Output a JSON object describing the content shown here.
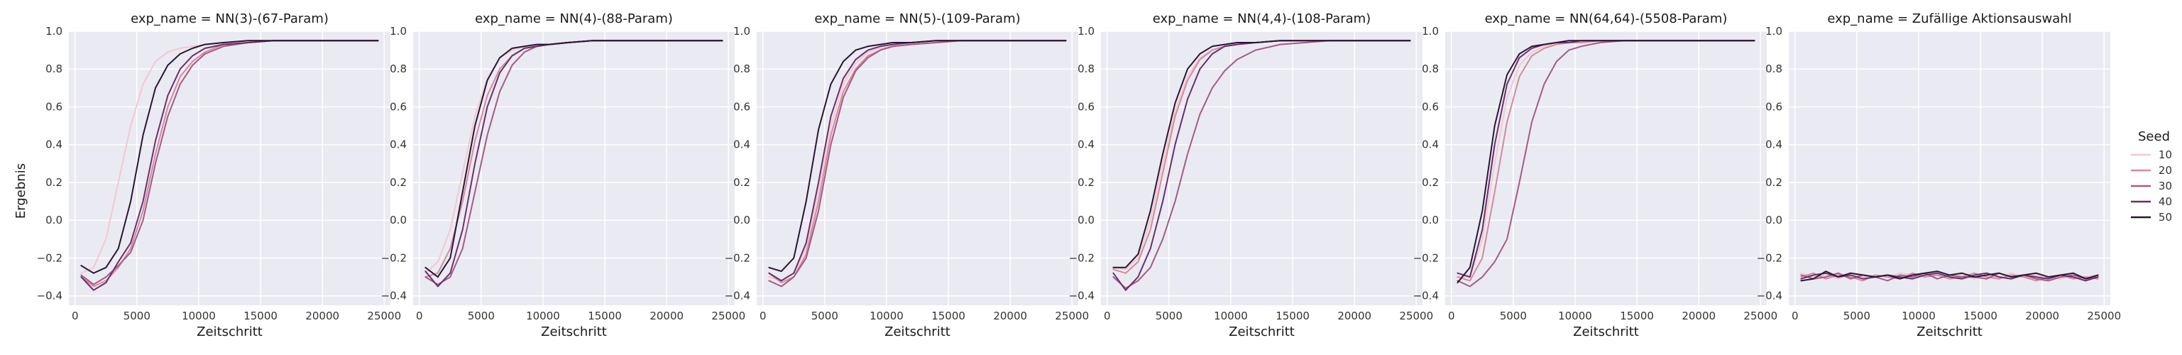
{
  "figure": {
    "ylabel": "Ergebnis",
    "legend_title": "Seed",
    "seeds": [
      "10",
      "20",
      "30",
      "40",
      "50"
    ],
    "seed_colors": [
      "#f2c9cf",
      "#d48a9c",
      "#a65a86",
      "#6b2f6b",
      "#2a1534"
    ],
    "plot_background": "#eaeaf2",
    "grid_color": "#ffffff"
  },
  "chart_data": [
    {
      "type": "line",
      "title": "exp_name = NN(3)-(67-Param)",
      "xlabel": "Zeitschritt",
      "ylabel": "Ergebnis",
      "xlim": [
        -500,
        25500
      ],
      "ylim": [
        -0.45,
        1.0
      ],
      "xticks": [
        0,
        5000,
        10000,
        15000,
        20000,
        25000
      ],
      "yticks": [
        -0.4,
        -0.2,
        0.0,
        0.2,
        0.4,
        0.6,
        0.8,
        1.0
      ],
      "grid": true,
      "legend": "right",
      "x": [
        500,
        1500,
        2500,
        3500,
        4500,
        5500,
        6500,
        7500,
        8500,
        9500,
        10500,
        12000,
        14000,
        16000,
        18000,
        20000,
        22000,
        24500
      ],
      "series": [
        {
          "name": "10",
          "values": [
            -0.28,
            -0.25,
            -0.1,
            0.2,
            0.5,
            0.72,
            0.84,
            0.89,
            0.91,
            0.92,
            0.93,
            0.94,
            0.95,
            0.95,
            0.95,
            0.95,
            0.95,
            0.95
          ]
        },
        {
          "name": "20",
          "values": [
            -0.3,
            -0.35,
            -0.32,
            -0.25,
            -0.15,
            0.05,
            0.35,
            0.6,
            0.76,
            0.84,
            0.89,
            0.93,
            0.94,
            0.95,
            0.95,
            0.95,
            0.95,
            0.95
          ]
        },
        {
          "name": "30",
          "values": [
            -0.29,
            -0.34,
            -0.3,
            -0.24,
            -0.17,
            0.0,
            0.3,
            0.55,
            0.72,
            0.82,
            0.88,
            0.92,
            0.94,
            0.95,
            0.95,
            0.95,
            0.95,
            0.95
          ]
        },
        {
          "name": "40",
          "values": [
            -0.3,
            -0.37,
            -0.33,
            -0.22,
            -0.12,
            0.1,
            0.42,
            0.66,
            0.8,
            0.87,
            0.91,
            0.93,
            0.94,
            0.95,
            0.95,
            0.95,
            0.95,
            0.95
          ]
        },
        {
          "name": "50",
          "values": [
            -0.24,
            -0.28,
            -0.25,
            -0.15,
            0.1,
            0.45,
            0.7,
            0.82,
            0.88,
            0.91,
            0.93,
            0.94,
            0.95,
            0.95,
            0.95,
            0.95,
            0.95,
            0.95
          ]
        }
      ]
    },
    {
      "type": "line",
      "title": "exp_name = NN(4)-(88-Param)",
      "xlabel": "Zeitschritt",
      "ylabel": "Ergebnis",
      "xlim": [
        -500,
        25500
      ],
      "ylim": [
        -0.45,
        1.0
      ],
      "xticks": [
        0,
        5000,
        10000,
        15000,
        20000,
        25000
      ],
      "yticks": [
        -0.4,
        -0.2,
        0.0,
        0.2,
        0.4,
        0.6,
        0.8,
        1.0
      ],
      "grid": true,
      "legend": "right",
      "x": [
        500,
        1500,
        2500,
        3500,
        4500,
        5500,
        6500,
        7500,
        8500,
        9500,
        10500,
        12000,
        14000,
        16000,
        18000,
        20000,
        22000,
        24500
      ],
      "series": [
        {
          "name": "10",
          "values": [
            -0.28,
            -0.22,
            -0.05,
            0.25,
            0.55,
            0.75,
            0.86,
            0.9,
            0.92,
            0.93,
            0.93,
            0.94,
            0.95,
            0.95,
            0.95,
            0.95,
            0.95,
            0.95
          ]
        },
        {
          "name": "20",
          "values": [
            -0.3,
            -0.28,
            -0.15,
            0.1,
            0.42,
            0.66,
            0.8,
            0.87,
            0.91,
            0.92,
            0.93,
            0.94,
            0.95,
            0.95,
            0.95,
            0.95,
            0.95,
            0.95
          ]
        },
        {
          "name": "30",
          "values": [
            -0.3,
            -0.34,
            -0.3,
            -0.15,
            0.15,
            0.45,
            0.68,
            0.82,
            0.89,
            0.92,
            0.93,
            0.94,
            0.95,
            0.95,
            0.95,
            0.95,
            0.95,
            0.95
          ]
        },
        {
          "name": "40",
          "values": [
            -0.27,
            -0.35,
            -0.28,
            -0.05,
            0.3,
            0.6,
            0.78,
            0.87,
            0.91,
            0.92,
            0.93,
            0.94,
            0.95,
            0.95,
            0.95,
            0.95,
            0.95,
            0.95
          ]
        },
        {
          "name": "50",
          "values": [
            -0.25,
            -0.3,
            -0.2,
            0.15,
            0.5,
            0.74,
            0.86,
            0.91,
            0.92,
            0.93,
            0.93,
            0.94,
            0.95,
            0.95,
            0.95,
            0.95,
            0.95,
            0.95
          ]
        }
      ]
    },
    {
      "type": "line",
      "title": "exp_name = NN(5)-(109-Param)",
      "xlabel": "Zeitschritt",
      "ylabel": "Ergebnis",
      "xlim": [
        -500,
        25500
      ],
      "ylim": [
        -0.45,
        1.0
      ],
      "xticks": [
        0,
        5000,
        10000,
        15000,
        20000,
        25000
      ],
      "yticks": [
        -0.4,
        -0.2,
        0.0,
        0.2,
        0.4,
        0.6,
        0.8,
        1.0
      ],
      "grid": true,
      "legend": "right",
      "x": [
        500,
        1500,
        2500,
        3500,
        4500,
        5500,
        6500,
        7500,
        8500,
        9500,
        10500,
        12000,
        14000,
        16000,
        18000,
        20000,
        22000,
        24500
      ],
      "series": [
        {
          "name": "10",
          "values": [
            -0.3,
            -0.32,
            -0.28,
            -0.15,
            0.15,
            0.5,
            0.72,
            0.83,
            0.89,
            0.91,
            0.92,
            0.93,
            0.94,
            0.95,
            0.95,
            0.95,
            0.95,
            0.95
          ]
        },
        {
          "name": "20",
          "values": [
            -0.28,
            -0.33,
            -0.3,
            -0.18,
            0.1,
            0.45,
            0.68,
            0.8,
            0.87,
            0.9,
            0.92,
            0.93,
            0.94,
            0.95,
            0.95,
            0.95,
            0.95,
            0.95
          ]
        },
        {
          "name": "30",
          "values": [
            -0.32,
            -0.35,
            -0.3,
            -0.2,
            0.05,
            0.4,
            0.65,
            0.79,
            0.86,
            0.9,
            0.92,
            0.93,
            0.94,
            0.95,
            0.95,
            0.95,
            0.95,
            0.95
          ]
        },
        {
          "name": "40",
          "values": [
            -0.28,
            -0.32,
            -0.28,
            -0.12,
            0.2,
            0.55,
            0.75,
            0.85,
            0.9,
            0.92,
            0.93,
            0.94,
            0.95,
            0.95,
            0.95,
            0.95,
            0.95,
            0.95
          ]
        },
        {
          "name": "50",
          "values": [
            -0.25,
            -0.27,
            -0.2,
            0.1,
            0.48,
            0.72,
            0.84,
            0.9,
            0.92,
            0.93,
            0.94,
            0.94,
            0.95,
            0.95,
            0.95,
            0.95,
            0.95,
            0.95
          ]
        }
      ]
    },
    {
      "type": "line",
      "title": "exp_name = NN(4,4)-(108-Param)",
      "xlabel": "Zeitschritt",
      "ylabel": "Ergebnis",
      "xlim": [
        -500,
        25500
      ],
      "ylim": [
        -0.45,
        1.0
      ],
      "xticks": [
        0,
        5000,
        10000,
        15000,
        20000,
        25000
      ],
      "yticks": [
        -0.4,
        -0.2,
        0.0,
        0.2,
        0.4,
        0.6,
        0.8,
        1.0
      ],
      "grid": true,
      "legend": "right",
      "x": [
        500,
        1500,
        2500,
        3500,
        4500,
        5500,
        6500,
        7500,
        8500,
        9500,
        10500,
        12000,
        14000,
        16000,
        18000,
        20000,
        22000,
        24500
      ],
      "series": [
        {
          "name": "10",
          "values": [
            -0.25,
            -0.26,
            -0.2,
            0.0,
            0.3,
            0.58,
            0.76,
            0.86,
            0.9,
            0.92,
            0.93,
            0.94,
            0.95,
            0.95,
            0.95,
            0.95,
            0.95,
            0.95
          ]
        },
        {
          "name": "20",
          "values": [
            -0.26,
            -0.28,
            -0.22,
            -0.05,
            0.25,
            0.55,
            0.74,
            0.85,
            0.9,
            0.92,
            0.93,
            0.94,
            0.95,
            0.95,
            0.95,
            0.95,
            0.95,
            0.95
          ]
        },
        {
          "name": "30",
          "values": [
            -0.3,
            -0.36,
            -0.32,
            -0.25,
            -0.1,
            0.1,
            0.35,
            0.56,
            0.7,
            0.79,
            0.85,
            0.9,
            0.93,
            0.94,
            0.95,
            0.95,
            0.95,
            0.95
          ]
        },
        {
          "name": "40",
          "values": [
            -0.28,
            -0.37,
            -0.3,
            -0.15,
            0.1,
            0.4,
            0.64,
            0.8,
            0.88,
            0.92,
            0.93,
            0.94,
            0.95,
            0.95,
            0.95,
            0.95,
            0.95,
            0.95
          ]
        },
        {
          "name": "50",
          "values": [
            -0.25,
            -0.25,
            -0.18,
            0.05,
            0.35,
            0.62,
            0.8,
            0.88,
            0.92,
            0.93,
            0.94,
            0.94,
            0.95,
            0.95,
            0.95,
            0.95,
            0.95,
            0.95
          ]
        }
      ]
    },
    {
      "type": "line",
      "title": "exp_name = NN(64,64)-(5508-Param)",
      "xlabel": "Zeitschritt",
      "ylabel": "Ergebnis",
      "xlim": [
        -500,
        25500
      ],
      "ylim": [
        -0.45,
        1.0
      ],
      "xticks": [
        0,
        5000,
        10000,
        15000,
        20000,
        25000
      ],
      "yticks": [
        -0.4,
        -0.2,
        0.0,
        0.2,
        0.4,
        0.6,
        0.8,
        1.0
      ],
      "grid": true,
      "legend": "right",
      "x": [
        500,
        1500,
        2500,
        3500,
        4500,
        5500,
        6500,
        7500,
        8500,
        9500,
        10500,
        12000,
        14000,
        16000,
        18000,
        20000,
        22000,
        24500
      ],
      "series": [
        {
          "name": "10",
          "values": [
            -0.3,
            -0.3,
            -0.1,
            0.3,
            0.65,
            0.82,
            0.89,
            0.92,
            0.93,
            0.94,
            0.94,
            0.95,
            0.95,
            0.95,
            0.95,
            0.95,
            0.95,
            0.95
          ]
        },
        {
          "name": "20",
          "values": [
            -0.3,
            -0.32,
            -0.2,
            0.15,
            0.52,
            0.76,
            0.87,
            0.91,
            0.93,
            0.94,
            0.94,
            0.95,
            0.95,
            0.95,
            0.95,
            0.95,
            0.95,
            0.95
          ]
        },
        {
          "name": "30",
          "values": [
            -0.32,
            -0.35,
            -0.3,
            -0.22,
            -0.1,
            0.2,
            0.52,
            0.72,
            0.84,
            0.9,
            0.92,
            0.94,
            0.95,
            0.95,
            0.95,
            0.95,
            0.95,
            0.95
          ]
        },
        {
          "name": "40",
          "values": [
            -0.28,
            -0.3,
            -0.05,
            0.4,
            0.72,
            0.86,
            0.91,
            0.93,
            0.94,
            0.94,
            0.95,
            0.95,
            0.95,
            0.95,
            0.95,
            0.95,
            0.95,
            0.95
          ]
        },
        {
          "name": "50",
          "values": [
            -0.33,
            -0.25,
            0.05,
            0.5,
            0.77,
            0.88,
            0.92,
            0.93,
            0.94,
            0.95,
            0.95,
            0.95,
            0.95,
            0.95,
            0.95,
            0.95,
            0.95,
            0.95
          ]
        }
      ]
    },
    {
      "type": "line",
      "title": "exp_name = Zufällige Aktionsauswahl",
      "xlabel": "Zeitschritt",
      "ylabel": "Ergebnis",
      "xlim": [
        -500,
        25500
      ],
      "ylim": [
        -0.45,
        1.0
      ],
      "xticks": [
        0,
        5000,
        10000,
        15000,
        20000,
        25000
      ],
      "yticks": [
        -0.4,
        -0.2,
        0.0,
        0.2,
        0.4,
        0.6,
        0.8,
        1.0
      ],
      "grid": true,
      "legend": "right",
      "x": [
        500,
        1500,
        2500,
        3500,
        4500,
        5500,
        6500,
        7500,
        8500,
        9500,
        10500,
        11500,
        12500,
        13500,
        14500,
        15500,
        16500,
        17500,
        18500,
        19500,
        20500,
        21500,
        22500,
        23500,
        24500
      ],
      "series": [
        {
          "name": "10",
          "values": [
            -0.28,
            -0.3,
            -0.29,
            -0.31,
            -0.28,
            -0.3,
            -0.29,
            -0.3,
            -0.28,
            -0.29,
            -0.3,
            -0.28,
            -0.3,
            -0.29,
            -0.31,
            -0.29,
            -0.3,
            -0.28,
            -0.3,
            -0.29,
            -0.3,
            -0.31,
            -0.29,
            -0.3,
            -0.29
          ]
        },
        {
          "name": "20",
          "values": [
            -0.3,
            -0.28,
            -0.31,
            -0.29,
            -0.3,
            -0.32,
            -0.29,
            -0.3,
            -0.31,
            -0.28,
            -0.3,
            -0.29,
            -0.31,
            -0.3,
            -0.28,
            -0.3,
            -0.31,
            -0.29,
            -0.3,
            -0.32,
            -0.3,
            -0.29,
            -0.31,
            -0.3,
            -0.31
          ]
        },
        {
          "name": "30",
          "values": [
            -0.29,
            -0.31,
            -0.3,
            -0.28,
            -0.31,
            -0.29,
            -0.3,
            -0.32,
            -0.29,
            -0.3,
            -0.28,
            -0.31,
            -0.29,
            -0.3,
            -0.3,
            -0.31,
            -0.28,
            -0.3,
            -0.29,
            -0.31,
            -0.32,
            -0.3,
            -0.29,
            -0.31,
            -0.3
          ]
        },
        {
          "name": "40",
          "values": [
            -0.31,
            -0.29,
            -0.28,
            -0.3,
            -0.29,
            -0.31,
            -0.3,
            -0.29,
            -0.3,
            -0.31,
            -0.29,
            -0.28,
            -0.3,
            -0.31,
            -0.29,
            -0.28,
            -0.3,
            -0.31,
            -0.29,
            -0.3,
            -0.31,
            -0.29,
            -0.3,
            -0.32,
            -0.3
          ]
        },
        {
          "name": "50",
          "values": [
            -0.32,
            -0.31,
            -0.27,
            -0.3,
            -0.28,
            -0.29,
            -0.3,
            -0.29,
            -0.31,
            -0.29,
            -0.28,
            -0.27,
            -0.29,
            -0.28,
            -0.3,
            -0.29,
            -0.28,
            -0.3,
            -0.29,
            -0.28,
            -0.3,
            -0.29,
            -0.28,
            -0.31,
            -0.29
          ]
        }
      ]
    }
  ]
}
